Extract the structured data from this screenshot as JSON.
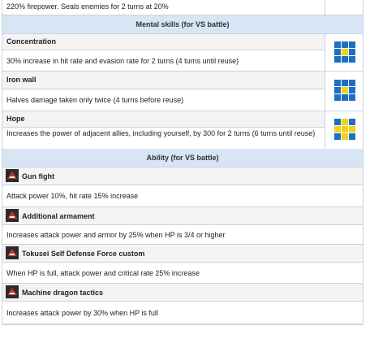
{
  "top": {
    "desc": "220% firepower. Seals enemies for 2 turns at 20%"
  },
  "mental": {
    "header": "Mental skills (for VS battle)",
    "items": [
      {
        "name": "Concentration",
        "desc": "30% increase in hit rate and evasion rate for 2 turns (4 turns until reuse)",
        "range_icon": "range-grid-icon"
      },
      {
        "name": "Iron wall",
        "desc": "Halves damage taken only twice (4 turns before reuse)",
        "range_icon": "range-grid-icon"
      },
      {
        "name": "Hope",
        "desc": "Increases the power of adjacent allies, including yourself, by 300 for 2 turns (6 turns until reuse)",
        "range_icon": "range-grid-icon"
      }
    ]
  },
  "ability": {
    "header": "Ability (for VS battle)",
    "items": [
      {
        "name": "Gun fight",
        "desc": "Attack power 10%, hit rate 15% increase",
        "icon": "ability-icon"
      },
      {
        "name": "Additional armament",
        "desc": "Increases attack power and armor by 25% when HP is 3/4 or higher",
        "icon": "ability-icon"
      },
      {
        "name": "Tokusei Self Defense Force custom",
        "desc": "When HP is full, attack power and critical rate 25% increase",
        "icon": "ability-icon"
      },
      {
        "name": "Machine dragon tactics",
        "desc": "Increases attack power by 30% when HP is full",
        "icon": "ability-icon"
      }
    ]
  },
  "colors": {
    "header_bg": "#d7e5f4",
    "name_bg": "#f3f3f3",
    "border": "#c7d4e2",
    "grid_blue": "#1d6fc4",
    "grid_yellow": "#f0d21a"
  }
}
